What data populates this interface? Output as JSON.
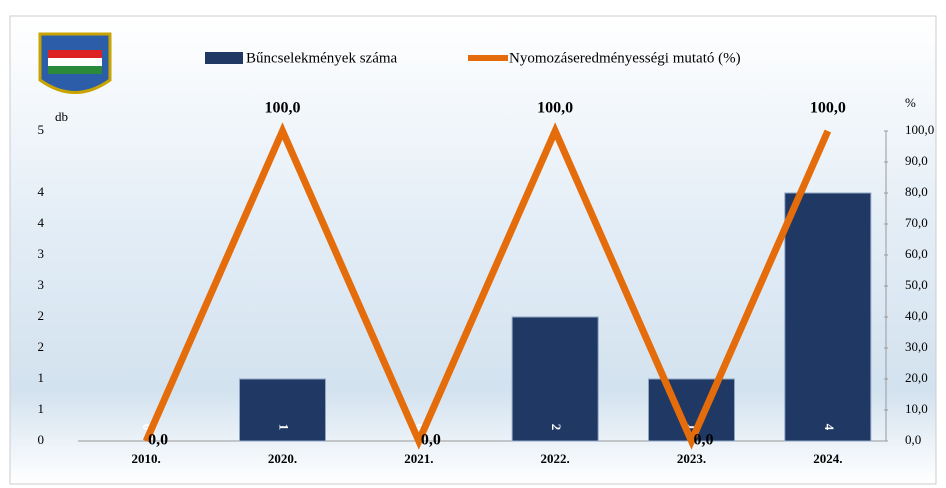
{
  "chart_data": {
    "type": "bar-line",
    "y_axis_label": "db",
    "y2_axis_label": "%",
    "categories": [
      "2010.",
      "2020.",
      "2021.",
      "2022.",
      "2023.",
      "2024."
    ],
    "series": [
      {
        "name": "Bűncselekmények száma",
        "color": "#1f3864",
        "type": "bar",
        "values": [
          0,
          1,
          0,
          2,
          1,
          4
        ]
      },
      {
        "name": "Nyomozáseredményességi mutató (%)",
        "color": "#e46c0a",
        "type": "line",
        "axis": "y2",
        "values": [
          0,
          100,
          0,
          100,
          0,
          100
        ],
        "value_labels": [
          "0,0",
          "100,0",
          "0,0",
          "100,0",
          "0,0",
          "100,0"
        ]
      }
    ],
    "ylim": [
      0,
      5
    ],
    "yticks": [
      0,
      {
        "value": 0.5,
        "label": "1"
      },
      1,
      {
        "value": 1.5,
        "label": "2"
      },
      2,
      {
        "value": 2.5,
        "label": "3"
      },
      3,
      {
        "value": 3.5,
        "label": "4"
      },
      4,
      5
    ],
    "y2lim": [
      0,
      100
    ],
    "y2ticks": [
      {
        "value": 0,
        "label": "0,0"
      },
      {
        "value": 10,
        "label": "10,0"
      },
      {
        "value": 20,
        "label": "20,0"
      },
      {
        "value": 30,
        "label": "30,0"
      },
      {
        "value": 40,
        "label": "40,0"
      },
      {
        "value": 50,
        "label": "50,0"
      },
      {
        "value": 60,
        "label": "60,0"
      },
      {
        "value": 70,
        "label": "70,0"
      },
      {
        "value": 80,
        "label": "80,0"
      },
      {
        "value": 90,
        "label": "90,0"
      },
      {
        "value": 100,
        "label": "100,0"
      }
    ]
  }
}
